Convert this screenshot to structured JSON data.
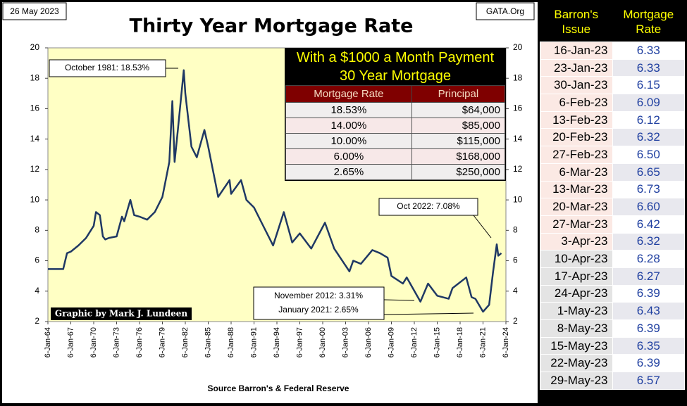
{
  "chart_data": {
    "type": "line",
    "title": "Thirty Year Mortgage Rate",
    "date": "26 May 2023",
    "site": "GATA.Org",
    "source": "Source Barron's & Federal Reserve",
    "credit": "Graphic by Mark J. Lundeen",
    "annotations": [
      "October 1981:  18.53%",
      "Oct 2022:  7.08%",
      "November 2012:  3.31%",
      "January 2021:  2.65%"
    ],
    "color": "#1f3864",
    "x": [
      1964,
      1966,
      1966.5,
      1967,
      1968,
      1969,
      1970,
      1970.3,
      1970.8,
      1971.2,
      1971.5,
      1972,
      1973,
      1973.7,
      1974,
      1974.8,
      1975.3,
      1976,
      1977,
      1978,
      1979,
      1979.9,
      1980.3,
      1980.6,
      1981,
      1981.8,
      1982,
      1982.8,
      1983.5,
      1984.5,
      1985,
      1986,
      1986.3,
      1987.8,
      1988,
      1989.3,
      1990,
      1991,
      1992,
      1993.5,
      1994.9,
      1996,
      1997,
      1998.5,
      2000.3,
      2001.5,
      2003.5,
      2004,
      2005,
      2006.5,
      2007.5,
      2008.5,
      2009,
      2010.5,
      2011,
      2012.8,
      2013.8,
      2015,
      2016.5,
      2017,
      2018.8,
      2019.5,
      2020,
      2021,
      2021.8,
      2022.3,
      2022.8,
      2023,
      2023.4
    ],
    "values": [
      5.45,
      5.45,
      6.5,
      6.6,
      7.0,
      7.5,
      8.3,
      9.2,
      9.0,
      7.6,
      7.4,
      7.5,
      7.6,
      8.9,
      8.6,
      10.0,
      9.0,
      8.9,
      8.7,
      9.2,
      10.2,
      12.5,
      16.5,
      12.5,
      14.5,
      18.53,
      17.0,
      13.5,
      12.8,
      14.6,
      13.5,
      11.0,
      10.2,
      11.3,
      10.4,
      11.3,
      10.0,
      9.5,
      8.5,
      7.0,
      9.2,
      7.2,
      7.8,
      6.8,
      8.5,
      6.8,
      5.3,
      6.0,
      5.8,
      6.7,
      6.5,
      6.2,
      5.0,
      4.5,
      4.9,
      3.31,
      4.5,
      3.7,
      3.5,
      4.2,
      4.9,
      3.6,
      3.5,
      2.65,
      3.1,
      5.2,
      7.08,
      6.33,
      6.5
    ],
    "xlim": [
      1964,
      2024
    ],
    "xticks": [
      {
        "value": 1964,
        "label": "6-Jan-64"
      },
      {
        "value": 1967,
        "label": "6-Jan-67"
      },
      {
        "value": 1970,
        "label": "6-Jan-70"
      },
      {
        "value": 1973,
        "label": "6-Jan-73"
      },
      {
        "value": 1976,
        "label": "6-Jan-76"
      },
      {
        "value": 1979,
        "label": "6-Jan-79"
      },
      {
        "value": 1982,
        "label": "6-Jan-82"
      },
      {
        "value": 1985,
        "label": "6-Jan-85"
      },
      {
        "value": 1988,
        "label": "6-Jan-88"
      },
      {
        "value": 1991,
        "label": "6-Jan-91"
      },
      {
        "value": 1994,
        "label": "6-Jan-94"
      },
      {
        "value": 1997,
        "label": "6-Jan-97"
      },
      {
        "value": 2000,
        "label": "6-Jan-00"
      },
      {
        "value": 2003,
        "label": "6-Jan-03"
      },
      {
        "value": 2006,
        "label": "6-Jan-06"
      },
      {
        "value": 2009,
        "label": "6-Jan-09"
      },
      {
        "value": 2012,
        "label": "6-Jan-12"
      },
      {
        "value": 2015,
        "label": "6-Jan-15"
      },
      {
        "value": 2018,
        "label": "6-Jan-18"
      },
      {
        "value": 2021,
        "label": "6-Jan-21"
      },
      {
        "value": 2024,
        "label": "6-Jan-24"
      }
    ],
    "ylim": [
      2,
      20
    ],
    "yticks": [
      2,
      4,
      6,
      8,
      10,
      12,
      14,
      16,
      18,
      20
    ]
  },
  "inset_table": {
    "title": [
      "With a $1000 a Month Payment",
      "30 Year Mortgage"
    ],
    "header": [
      "Mortgage Rate",
      "Principal"
    ],
    "rows": [
      [
        "18.53%",
        "$64,000"
      ],
      [
        "14.00%",
        "$85,000"
      ],
      [
        "10.00%",
        "$115,000"
      ],
      [
        "6.00%",
        "$168,000"
      ],
      [
        "2.65%",
        "$250,000"
      ]
    ]
  },
  "rates_table": {
    "header": [
      "Barron's Issue",
      "Mortgage Rate"
    ],
    "rows": [
      [
        "16-Jan-23",
        "6.33"
      ],
      [
        "23-Jan-23",
        "6.33"
      ],
      [
        "30-Jan-23",
        "6.15"
      ],
      [
        "6-Feb-23",
        "6.09"
      ],
      [
        "13-Feb-23",
        "6.12"
      ],
      [
        "20-Feb-23",
        "6.32"
      ],
      [
        "27-Feb-23",
        "6.50"
      ],
      [
        "6-Mar-23",
        "6.65"
      ],
      [
        "13-Mar-23",
        "6.73"
      ],
      [
        "20-Mar-23",
        "6.60"
      ],
      [
        "27-Mar-23",
        "6.42"
      ],
      [
        "3-Apr-23",
        "6.32"
      ],
      [
        "10-Apr-23",
        "6.28"
      ],
      [
        "17-Apr-23",
        "6.27"
      ],
      [
        "24-Apr-23",
        "6.39"
      ],
      [
        "1-May-23",
        "6.43"
      ],
      [
        "8-May-23",
        "6.39"
      ],
      [
        "15-May-23",
        "6.35"
      ],
      [
        "22-May-23",
        "6.39"
      ],
      [
        "29-May-23",
        "6.57"
      ]
    ]
  }
}
